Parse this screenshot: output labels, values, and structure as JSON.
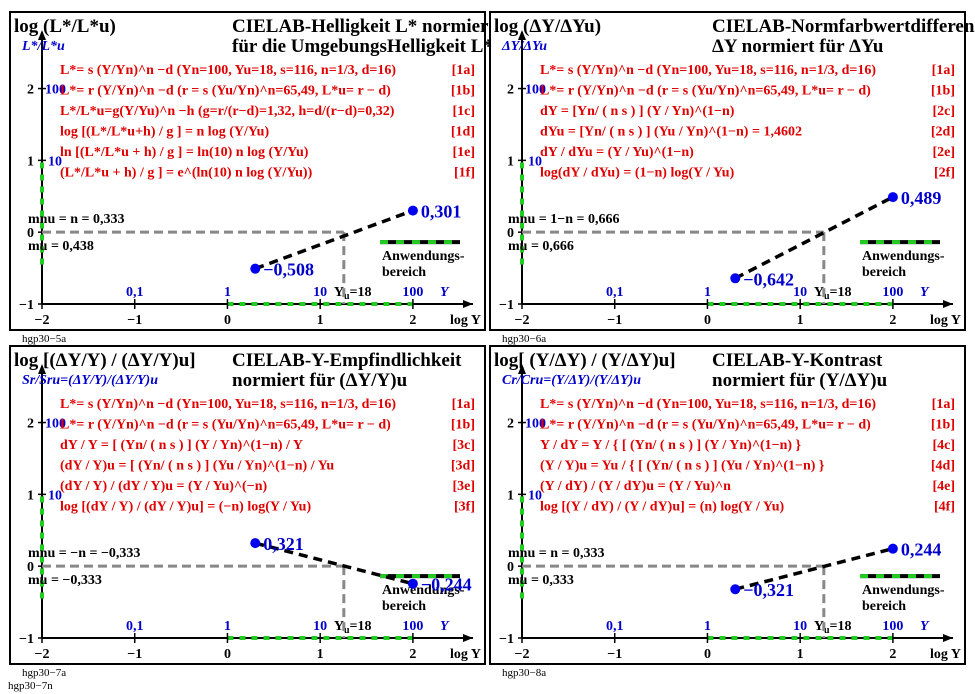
{
  "page_label": "hgp30−7n",
  "chart_data": [
    {
      "type": "line",
      "id": "hgp30-5a",
      "plate_label": "hgp30−5a",
      "title_lines": [
        "CIELAB-Helligkeit L* normiert",
        "für die UmgebungsHelligkeit L*u"
      ],
      "ylabel": "log (L*/L*u)",
      "ylabel2": "L*/L*u",
      "xlabel": "log Y",
      "xlabel2": "Y",
      "xlim": [
        -2,
        2.4
      ],
      "ylim": [
        -1,
        2.3
      ],
      "x_ticks": [
        "−2",
        "−1",
        "0",
        "1",
        "2"
      ],
      "y_ticks": [
        "2",
        "1",
        "0",
        "−1"
      ],
      "y_lin_ticks": [
        "100",
        "10"
      ],
      "x_lin_ticks": [
        "0,1",
        "1",
        "10",
        "Yu=18",
        "100"
      ],
      "equations": [
        {
          "text": "L*= s (Y/Yn)^n −d   (Yn=100, Yu=18, s=116, n=1/3, d=16)",
          "tag": "[1a]"
        },
        {
          "text": "L*= r (Y/Yn)^n −d   (r = s (Yu/Yn)^n=65,49, L*u= r − d)",
          "tag": "[1b]"
        },
        {
          "text": "L*/L*u=g(Y/Yu)^n −h   (g=r/(r−d)=1,32, h=d/(r−d)=0,32)",
          "tag": "[1c]"
        },
        {
          "text": "log [(L*/L*u+h) / g ] = n log (Y/Yu)",
          "tag": "[1d]"
        },
        {
          "text": "ln [(L*/L*u + h) / g ] = ln(10) n log (Y/Yu)",
          "tag": "[1e]"
        },
        {
          "text": "(L*/L*u + h) / g ] = e^(ln(10) n log (Y/Yu))",
          "tag": "[1f]"
        }
      ],
      "m_nu": "mnu = n = 0,333",
      "m_u": "mu = 0,438",
      "range_label": [
        "Anwendungs-",
        "bereich"
      ],
      "series": [
        {
          "x": [
            0.3,
            2.0
          ],
          "y": [
            -0.508,
            0.301
          ],
          "labels": [
            "−0,508",
            "0,301"
          ]
        }
      ],
      "ref_point": {
        "x": 1.255,
        "y": 0
      }
    },
    {
      "type": "line",
      "id": "hgp30-6a",
      "plate_label": "hgp30−6a",
      "title_lines": [
        "CIELAB-Normfarbwertdifferenz",
        "ΔY normiert für ΔYu"
      ],
      "ylabel": "log (ΔY/ΔYu)",
      "ylabel2": "ΔY/ΔYu",
      "xlabel": "log Y",
      "xlabel2": "Y",
      "xlim": [
        -2,
        2.4
      ],
      "ylim": [
        -1,
        2.3
      ],
      "x_ticks": [
        "−2",
        "−1",
        "0",
        "1",
        "2"
      ],
      "y_ticks": [
        "2",
        "1",
        "0",
        "−1"
      ],
      "y_lin_ticks": [
        "100",
        "10"
      ],
      "x_lin_ticks": [
        "0,1",
        "1",
        "10",
        "Yu=18",
        "100"
      ],
      "equations": [
        {
          "text": "L*= s (Y/Yn)^n −d   (Yn=100, Yu=18, s=116, n=1/3, d=16)",
          "tag": "[1a]"
        },
        {
          "text": "L*= r (Y/Yn)^n −d   (r = s (Yu/Yn)^n=65,49, L*u= r − d)",
          "tag": "[1b]"
        },
        {
          "text": "dY = [Yn/ ( n s ) ] (Y / Yn)^(1−n)",
          "tag": "[2c]"
        },
        {
          "text": "dYu = [Yn/ ( n s ) ] (Yu / Yn)^(1−n) = 1,4602",
          "tag": "[2d]"
        },
        {
          "text": "dY / dYu = (Y / Yu)^(1−n)",
          "tag": "[2e]"
        },
        {
          "text": "log(dY / dYu) = (1−n) log(Y / Yu)",
          "tag": "[2f]"
        }
      ],
      "m_nu": "mnu = 1−n = 0,666",
      "m_u": "mu = 0,666",
      "range_label": [
        "Anwendungs-",
        "bereich"
      ],
      "series": [
        {
          "x": [
            0.3,
            2.0
          ],
          "y": [
            -0.642,
            0.489
          ],
          "labels": [
            "−0,642",
            "0,489"
          ]
        }
      ],
      "ref_point": {
        "x": 1.255,
        "y": 0
      }
    },
    {
      "type": "line",
      "id": "hgp30-7a",
      "plate_label": "hgp30−7a",
      "title_lines": [
        "CIELAB-Y-Empfindlichkeit",
        "normiert für (ΔY/Y)u"
      ],
      "ylabel": "log [(ΔY/Y) / (ΔY/Y)u]",
      "ylabel2": "Sr/Sru=(ΔY/Y)/(ΔY/Y)u",
      "xlabel": "log Y",
      "xlabel2": "Y",
      "xlim": [
        -2,
        2.4
      ],
      "ylim": [
        -1,
        2.3
      ],
      "x_ticks": [
        "−2",
        "−1",
        "0",
        "1",
        "2"
      ],
      "y_ticks": [
        "2",
        "1",
        "0",
        "−1"
      ],
      "y_lin_ticks": [
        "100",
        "10"
      ],
      "x_lin_ticks": [
        "0,1",
        "1",
        "10",
        "Yu=18",
        "100"
      ],
      "equations": [
        {
          "text": "L*= s (Y/Yn)^n −d   (Yn=100, Yu=18, s=116, n=1/3, d=16)",
          "tag": "[1a]"
        },
        {
          "text": "L*= r (Y/Yn)^n −d   (r = s (Yu/Yn)^n=65,49, L*u= r − d)",
          "tag": "[1b]"
        },
        {
          "text": "dY / Y = [ (Yn/ ( n s ) ] (Y / Yn)^(1−n) / Y",
          "tag": "[3c]"
        },
        {
          "text": "(dY / Y)u = [ (Yn/ ( n s ) ] (Yu / Yn)^(1−n) / Yu",
          "tag": "[3d]"
        },
        {
          "text": "(dY / Y) / (dY / Y)u = (Y / Yu)^(−n)",
          "tag": "[3e]"
        },
        {
          "text": "log [(dY / Y) / (dY / Y)u] = (−n) log(Y / Yu)",
          "tag": "[3f]"
        }
      ],
      "m_nu": "mnu = −n = −0,333",
      "m_u": "mu = −0,333",
      "range_label": [
        "Anwendungs-",
        "bereich"
      ],
      "series": [
        {
          "x": [
            0.3,
            2.0
          ],
          "y": [
            0.321,
            -0.244
          ],
          "labels": [
            "0,321",
            "−0,244"
          ]
        }
      ],
      "ref_point": {
        "x": 1.255,
        "y": 0
      }
    },
    {
      "type": "line",
      "id": "hgp30-8a",
      "plate_label": "hgp30−8a",
      "title_lines": [
        "CIELAB-Y-Kontrast",
        "normiert für (Y/ΔY)u"
      ],
      "ylabel": "log[ (Y/ΔY) / (Y/ΔY)u]",
      "ylabel2": "Cr/Cru=(Y/ΔY)/(Y/ΔY)u",
      "xlabel": "log Y",
      "xlabel2": "Y",
      "xlim": [
        -2,
        2.4
      ],
      "ylim": [
        -1,
        2.3
      ],
      "x_ticks": [
        "−2",
        "−1",
        "0",
        "1",
        "2"
      ],
      "y_ticks": [
        "2",
        "1",
        "0",
        "−1"
      ],
      "y_lin_ticks": [
        "100",
        "10"
      ],
      "x_lin_ticks": [
        "0,1",
        "1",
        "10",
        "Yu=18",
        "100"
      ],
      "equations": [
        {
          "text": "L*= s (Y/Yn)^n −d   (Yn=100, Yu=18, s=116, n=1/3, d=16)",
          "tag": "[1a]"
        },
        {
          "text": "L*= r (Y/Yn)^n −d   (r = s (Yu/Yn)^n=65,49, L*u= r − d)",
          "tag": "[1b]"
        },
        {
          "text": "Y / dY = Y / { [ (Yn/ ( n s ) ] (Y / Yn)^(1−n) }",
          "tag": "[4c]"
        },
        {
          "text": "(Y / Y)u = Yu / { [ (Yn/ ( n s ) ] (Yu / Yn)^(1−n) }",
          "tag": "[4d]"
        },
        {
          "text": "(Y / dY) / (Y / dY)u = (Y / Yu)^n",
          "tag": "[4e]"
        },
        {
          "text": "log [(Y / dY) / (Y / dY)u] = (n) log(Y / Yu)",
          "tag": "[4f]"
        }
      ],
      "m_nu": "mnu = n = 0,333",
      "m_u": "mu = 0,333",
      "range_label": [
        "Anwendungs-",
        "bereich"
      ],
      "series": [
        {
          "x": [
            0.3,
            2.0
          ],
          "y": [
            -0.321,
            0.244
          ],
          "labels": [
            "−0,321",
            "0,244"
          ]
        }
      ],
      "ref_point": {
        "x": 1.255,
        "y": 0
      }
    }
  ]
}
